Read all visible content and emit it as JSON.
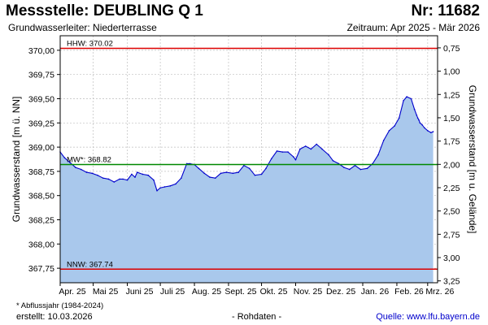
{
  "header": {
    "title": "Messstelle: DEUBLING Q 1",
    "number": "Nr: 11682",
    "aquifer": "Grundwasserleiter:   Niederterrasse",
    "period": "Zeitraum: Apr 2025 - Mär 2026"
  },
  "footer": {
    "footnote": "* Abflussjahr (1984-2024)",
    "created": "erstellt:  10.03.2026",
    "raw_data": "- Rohdaten -",
    "source": "Quelle: www.lfu.bayern.de"
  },
  "colors": {
    "area": "#a9c8ec",
    "line": "#0000cc",
    "hhw": "#dd0000",
    "nnw": "#dd0000",
    "mw": "#008800",
    "grid": "#bfbfbf"
  },
  "chart_data": {
    "type": "area",
    "ylabel": "Grundwasserstand [m ü. NN]",
    "y2label": "Grundwasserstand [m u. Gelände]",
    "ylim": [
      367.6,
      370.15
    ],
    "y2lim": [
      0.62,
      3.27
    ],
    "xlim": [
      "2025-04-01",
      "2026-03-10"
    ],
    "yticks": [
      367.75,
      368.0,
      368.25,
      368.5,
      368.75,
      369.0,
      369.25,
      369.5,
      369.75,
      370.0
    ],
    "ytick_labels": [
      "367,75",
      "368,00",
      "368,25",
      "368,50",
      "368,75",
      "369,00",
      "369,25",
      "369,50",
      "369,75",
      "370,00"
    ],
    "y2ticks": [
      0.75,
      1.0,
      1.25,
      1.5,
      1.75,
      2.0,
      2.25,
      2.5,
      2.75,
      3.0,
      3.25
    ],
    "y2tick_labels": [
      "0,75",
      "1,00",
      "1,25",
      "1,50",
      "1,75",
      "2,00",
      "2,25",
      "2,50",
      "2,75",
      "3,00",
      "3,25"
    ],
    "xticks": [
      "2025-04-01",
      "2025-05-01",
      "2025-06-01",
      "2025-07-01",
      "2025-08-01",
      "2025-09-01",
      "2025-10-01",
      "2025-11-01",
      "2025-12-01",
      "2026-01-01",
      "2026-02-01",
      "2026-03-01"
    ],
    "xtick_labels": [
      "Apr. 25",
      "Mai 25",
      "Juni 25",
      "Juli 25",
      "Aug. 25",
      "Sept. 25",
      "Okt. 25",
      "Nov. 25",
      "Dez. 25",
      "Jan. 26",
      "Feb. 26",
      "Mrz. 26"
    ],
    "grid": true,
    "reference_lines": [
      {
        "name": "HHW",
        "label": "HHW: 370.02",
        "value": 370.02
      },
      {
        "name": "MW",
        "label": "MW*: 368.82",
        "value": 368.82
      },
      {
        "name": "NNW",
        "label": "NNW: 367.74",
        "value": 367.74
      }
    ],
    "series": [
      {
        "x": [
          "2025-04-01",
          "2025-04-05",
          "2025-04-10",
          "2025-04-15",
          "2025-04-20",
          "2025-04-25",
          "2025-04-30",
          "2025-05-05",
          "2025-05-10",
          "2025-05-15",
          "2025-05-20",
          "2025-05-25",
          "2025-05-28",
          "2025-06-01",
          "2025-06-05",
          "2025-06-08",
          "2025-06-10",
          "2025-06-15",
          "2025-06-20",
          "2025-06-25",
          "2025-06-28",
          "2025-07-01",
          "2025-07-05",
          "2025-07-10",
          "2025-07-15",
          "2025-07-20",
          "2025-07-25",
          "2025-07-28",
          "2025-08-01",
          "2025-08-05",
          "2025-08-10",
          "2025-08-15",
          "2025-08-20",
          "2025-08-25",
          "2025-08-30",
          "2025-09-05",
          "2025-09-10",
          "2025-09-15",
          "2025-09-20",
          "2025-09-25",
          "2025-10-01",
          "2025-10-05",
          "2025-10-10",
          "2025-10-15",
          "2025-10-20",
          "2025-10-25",
          "2025-10-30",
          "2025-11-01",
          "2025-11-05",
          "2025-11-10",
          "2025-11-15",
          "2025-11-20",
          "2025-11-25",
          "2025-12-01",
          "2025-12-05",
          "2025-12-10",
          "2025-12-15",
          "2025-12-20",
          "2025-12-25",
          "2025-12-30",
          "2026-01-05",
          "2026-01-10",
          "2026-01-15",
          "2026-01-20",
          "2026-01-25",
          "2026-01-30",
          "2026-02-03",
          "2026-02-07",
          "2026-02-10",
          "2026-02-14",
          "2026-02-17",
          "2026-02-19",
          "2026-02-20",
          "2026-02-21",
          "2026-02-22",
          "2026-02-24",
          "2026-02-26",
          "2026-03-01",
          "2026-03-04",
          "2026-03-06"
        ],
        "values": [
          368.95,
          368.89,
          368.84,
          368.79,
          368.77,
          368.74,
          368.73,
          368.71,
          368.68,
          368.67,
          368.64,
          368.67,
          368.67,
          368.66,
          368.72,
          368.69,
          368.74,
          368.72,
          368.71,
          368.66,
          368.55,
          368.58,
          368.59,
          368.6,
          368.62,
          368.68,
          368.83,
          368.83,
          368.82,
          368.78,
          368.73,
          368.69,
          368.68,
          368.73,
          368.74,
          368.73,
          368.74,
          368.81,
          368.78,
          368.71,
          368.72,
          368.78,
          368.88,
          368.96,
          368.95,
          368.95,
          368.9,
          368.87,
          368.98,
          369.01,
          368.98,
          369.03,
          368.98,
          368.92,
          368.86,
          368.83,
          368.79,
          368.77,
          368.81,
          368.77,
          368.78,
          368.83,
          368.92,
          369.07,
          369.17,
          369.22,
          369.3,
          369.48,
          369.52,
          369.5,
          369.39,
          369.33,
          369.3,
          369.28,
          369.25,
          369.23,
          369.2,
          369.17,
          369.15,
          369.16
        ]
      }
    ]
  }
}
